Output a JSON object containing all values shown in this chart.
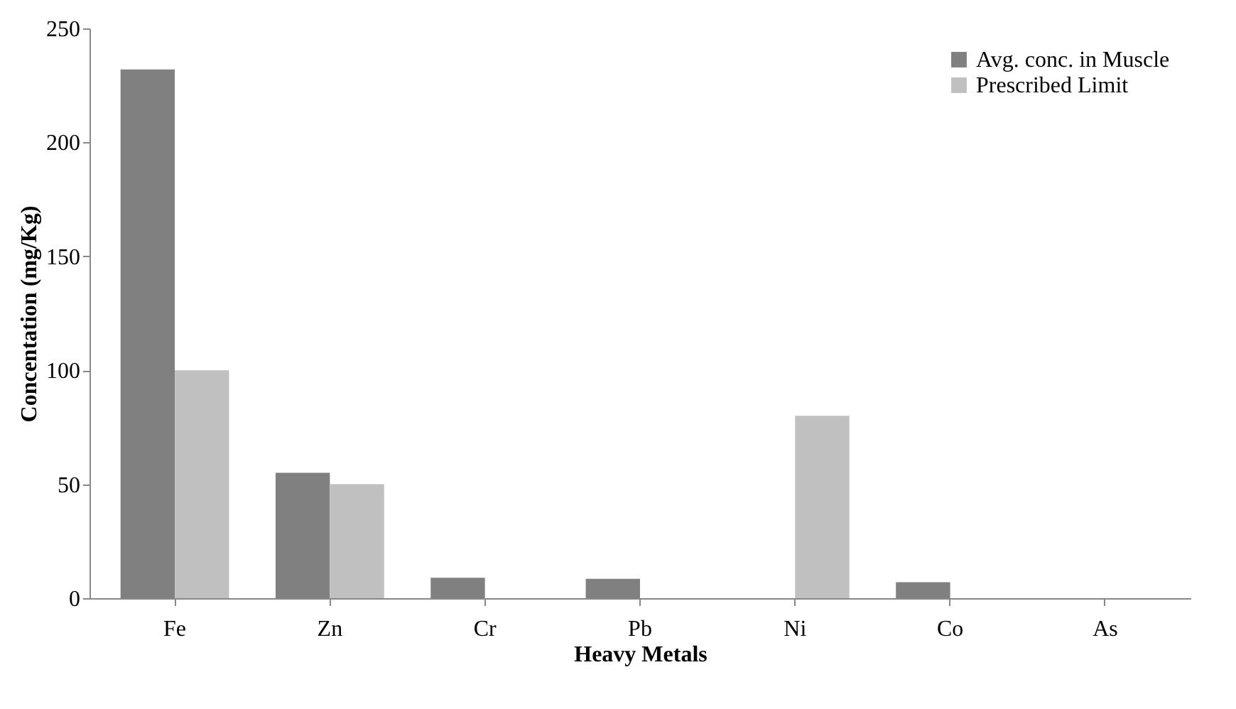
{
  "chart_data": {
    "type": "bar",
    "xlabel": "Heavy Metals",
    "ylabel": "Concentation  (mg/Kg)",
    "categories": [
      "Fe",
      "Zn",
      "Cr",
      "Pb",
      "Ni",
      "Co",
      "As"
    ],
    "series": [
      {
        "name": "Avg. conc. in Muscle",
        "color": "#808080",
        "values": [
          232,
          55,
          9,
          8.5,
          0,
          7,
          0
        ]
      },
      {
        "name": "Prescribed Limit",
        "color": "#c0c0c0",
        "values": [
          100,
          50,
          0,
          0,
          80,
          0,
          0
        ]
      }
    ],
    "ylim": [
      0,
      250
    ],
    "yticks": [
      0,
      50,
      100,
      150,
      200,
      250
    ],
    "grid": false,
    "legend": "top right"
  }
}
